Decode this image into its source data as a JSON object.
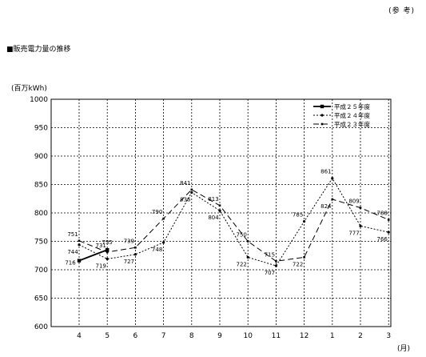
{
  "header": {
    "ref_label": "(参 考)"
  },
  "section_title": "■販売電力量の推移",
  "chart_data": {
    "type": "line",
    "title": "",
    "ylabel": "(百万kWh)",
    "xlabel": "(月)",
    "categories": [
      "4",
      "5",
      "6",
      "7",
      "8",
      "9",
      "10",
      "11",
      "12",
      "1",
      "2",
      "3"
    ],
    "ylim": [
      600,
      1000
    ],
    "yticks": [
      600,
      650,
      700,
      750,
      800,
      850,
      900,
      950,
      1000
    ],
    "grid": true,
    "legend_position": "top-right",
    "series": [
      {
        "name": "平成２５年度",
        "style": "solid",
        "values": [
          716,
          735,
          null,
          null,
          null,
          null,
          null,
          null,
          null,
          null,
          null,
          null
        ],
        "labels": [
          "716",
          "735",
          null,
          null,
          null,
          null,
          null,
          null,
          null,
          null,
          null,
          null
        ]
      },
      {
        "name": "平成２４年度",
        "style": "dotted",
        "values": [
          744,
          719,
          727,
          748,
          836,
          804,
          722,
          707,
          785,
          861,
          777,
          766
        ],
        "labels": [
          "744",
          "719",
          "727",
          "748",
          "836",
          "804",
          "722",
          "707",
          "785",
          "861",
          "777",
          "766"
        ]
      },
      {
        "name": "平成２３年度",
        "style": "dashed",
        "values": [
          751,
          731,
          739,
          790,
          841,
          813,
          750,
          715,
          722,
          824,
          809,
          788
        ],
        "labels": [
          "751",
          "731",
          "739",
          "790",
          "841",
          "813",
          "750",
          "715",
          "722",
          "824",
          "809",
          "788"
        ]
      }
    ]
  }
}
